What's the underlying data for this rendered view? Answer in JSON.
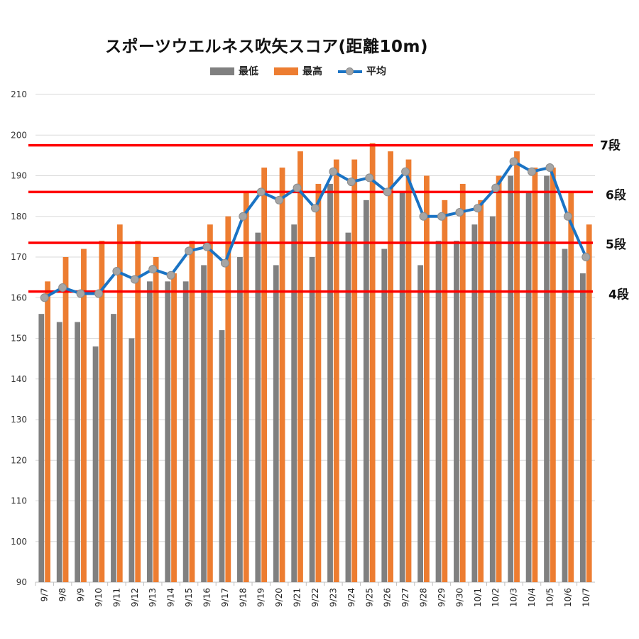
{
  "chart_data": {
    "type": "bar",
    "title": "スポーツウエルネス吹矢スコア(距離10m)",
    "categories": [
      "9/7",
      "9/8",
      "9/9",
      "9/10",
      "9/11",
      "9/12",
      "9/13",
      "9/14",
      "9/15",
      "9/16",
      "9/17",
      "9/18",
      "9/19",
      "9/20",
      "9/21",
      "9/22",
      "9/23",
      "9/24",
      "9/25",
      "9/26",
      "9/27",
      "9/28",
      "9/29",
      "9/30",
      "10/1",
      "10/2",
      "10/3",
      "10/4",
      "10/5",
      "10/6",
      "10/7"
    ],
    "series": [
      {
        "name": "最低",
        "type": "bar",
        "color": "#808080",
        "values": [
          156,
          154,
          154,
          148,
          156,
          150,
          164,
          164,
          164,
          168,
          152,
          170,
          176,
          168,
          178,
          170,
          188,
          176,
          184,
          172,
          186,
          168,
          174,
          174,
          178,
          180,
          190,
          186,
          190,
          172,
          166
        ]
      },
      {
        "name": "最高",
        "type": "bar",
        "color": "#ed7d31",
        "values": [
          164,
          170,
          172,
          174,
          178,
          174,
          170,
          166,
          174,
          178,
          180,
          186,
          192,
          192,
          196,
          188,
          194,
          194,
          198,
          196,
          194,
          190,
          184,
          188,
          184,
          190,
          196,
          192,
          192,
          186,
          178
        ]
      },
      {
        "name": "平均",
        "type": "line",
        "color": "#1a73c4",
        "marker_color": "#a5a5a5",
        "values": [
          160,
          162.5,
          161,
          161,
          166.5,
          164.5,
          167,
          165.5,
          171.5,
          172.5,
          168.5,
          180,
          186,
          184,
          187,
          182,
          191,
          188.5,
          189.5,
          186,
          191,
          180,
          180,
          181,
          182,
          187,
          193.5,
          191,
          192,
          180,
          170
        ]
      }
    ],
    "reference_lines": [
      {
        "label": "7段",
        "value": 197.5,
        "color": "#ff0000"
      },
      {
        "label": "6段",
        "value": 186,
        "color": "#ff0000"
      },
      {
        "label": "5段",
        "value": 173.5,
        "color": "#ff0000"
      },
      {
        "label": "4段",
        "value": 161.5,
        "color": "#ff0000"
      }
    ],
    "ylim": [
      90,
      210
    ],
    "yticks": [
      90,
      100,
      110,
      120,
      130,
      140,
      150,
      160,
      170,
      180,
      190,
      200,
      210
    ],
    "xlabel": "",
    "ylabel": "",
    "grid": true,
    "legend_position": "top"
  }
}
